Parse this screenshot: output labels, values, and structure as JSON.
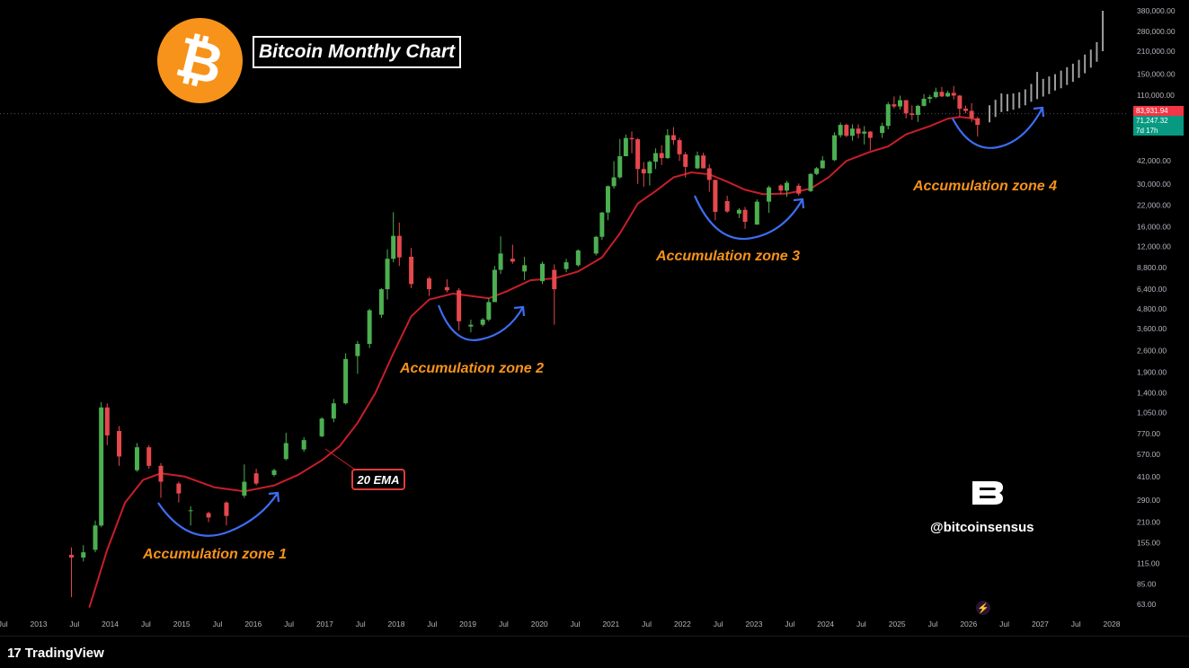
{
  "header": {
    "title": "Bitcoin Monthly Chart"
  },
  "logo": {
    "glyph": "₿",
    "color": "#f7931a"
  },
  "annotations": {
    "zones": [
      "Accumulation zone 1",
      "Accumulation zone 2",
      "Accumulation zone 3",
      "Accumulation zone 4"
    ],
    "ema_label": "20 EMA",
    "handle": "@bitcoinsensus"
  },
  "footer": {
    "brand": "TradingView",
    "brand_mark": "17"
  },
  "price_tags": [
    {
      "value": "83,931.94",
      "color": "#f23645"
    },
    {
      "value": "71,247.32",
      "color": "#089981"
    },
    {
      "value": "7d 17h",
      "color": "#089981"
    }
  ],
  "colors": {
    "up": "#4caf50",
    "down": "#e5484d",
    "ema": "#c81e2a",
    "projection": "#9e9e9e",
    "arrow": "#3d6df2"
  },
  "chart_data": {
    "type": "candlestick",
    "title": "Bitcoin Monthly Chart",
    "timeframe": "monthly",
    "y_scale": "log",
    "ylim": [
      50,
      380000
    ],
    "y_ticks": [
      "380,000.00",
      "280,000.00",
      "210,000.00",
      "150,000.00",
      "110,000.00",
      "42,000.00",
      "30,000.00",
      "22,000.00",
      "16,000.00",
      "12,000.00",
      "8,800.00",
      "6,400.00",
      "4,800.00",
      "3,600.00",
      "2,600.00",
      "1,900.00",
      "1,400.00",
      "1,050.00",
      "770.00",
      "570.00",
      "410.00",
      "290.00",
      "210.00",
      "155.00",
      "115.00",
      "85.00",
      "63.00"
    ],
    "x_ticks": [
      "Jul",
      "2013",
      "Jul",
      "2014",
      "Jul",
      "2015",
      "Jul",
      "2016",
      "Jul",
      "2017",
      "Jul",
      "2018",
      "Jul",
      "2019",
      "Jul",
      "2020",
      "Jul",
      "2021",
      "Jul",
      "2022",
      "Jul",
      "2023",
      "Jul",
      "2024",
      "Jul",
      "2025",
      "Jul",
      "2026",
      "Jul",
      "2027",
      "Jul",
      "2028"
    ],
    "x_tick_values": [
      2012.5,
      2013.0,
      2013.5,
      2014.0,
      2014.5,
      2015.0,
      2015.5,
      2016.0,
      2016.5,
      2017.0,
      2017.5,
      2018.0,
      2018.5,
      2019.0,
      2019.5,
      2020.0,
      2020.5,
      2021.0,
      2021.5,
      2022.0,
      2022.5,
      2023.0,
      2023.5,
      2024.0,
      2024.5,
      2025.0,
      2025.5,
      2026.0,
      2026.5,
      2027.0,
      2027.5,
      2028.0
    ],
    "ema_period": 20,
    "current_price": 71247.32,
    "ref_price": 83931.94,
    "candles": [
      [
        "2013-06",
        130,
        125,
        145,
        70
      ],
      [
        "2013-08",
        125,
        135,
        150,
        118
      ],
      [
        "2013-10",
        140,
        200,
        215,
        135
      ],
      [
        "2013-11",
        200,
        1130,
        1220,
        195
      ],
      [
        "2013-12",
        1130,
        750,
        1200,
        650
      ],
      [
        "2014-02",
        800,
        550,
        860,
        480
      ],
      [
        "2014-05",
        450,
        630,
        670,
        440
      ],
      [
        "2014-07",
        630,
        480,
        650,
        460
      ],
      [
        "2014-09",
        480,
        380,
        500,
        300
      ],
      [
        "2014-12",
        370,
        320,
        380,
        280
      ],
      [
        "2015-02",
        250,
        250,
        265,
        200
      ],
      [
        "2015-05",
        240,
        225,
        245,
        210
      ],
      [
        "2015-08",
        280,
        230,
        285,
        200
      ],
      [
        "2015-11",
        310,
        380,
        490,
        300
      ],
      [
        "2016-01",
        430,
        370,
        460,
        360
      ],
      [
        "2016-04",
        420,
        450,
        460,
        410
      ],
      [
        "2016-06",
        530,
        670,
        780,
        520
      ],
      [
        "2016-09",
        610,
        700,
        730,
        590
      ],
      [
        "2016-12",
        740,
        960,
        980,
        730
      ],
      [
        "2017-02",
        960,
        1200,
        1280,
        910
      ],
      [
        "2017-04",
        1200,
        2300,
        2500,
        1180
      ],
      [
        "2017-06",
        2400,
        2870,
        3000,
        1850
      ],
      [
        "2017-08",
        2870,
        4700,
        4800,
        2700
      ],
      [
        "2017-10",
        4400,
        6400,
        6500,
        4200
      ],
      [
        "2017-11",
        6400,
        10000,
        11500,
        5500
      ],
      [
        "2017-12",
        10000,
        14000,
        19800,
        9500
      ],
      [
        "2018-01",
        14000,
        10200,
        17000,
        9000
      ],
      [
        "2018-03",
        10300,
        6900,
        11700,
        6500
      ],
      [
        "2018-06",
        7500,
        6400,
        7700,
        5800
      ],
      [
        "2018-09",
        6600,
        6300,
        7400,
        6100
      ],
      [
        "2018-11",
        6300,
        4000,
        6500,
        3500
      ],
      [
        "2019-01",
        3700,
        3800,
        4100,
        3400
      ],
      [
        "2019-03",
        3800,
        4100,
        4200,
        3700
      ],
      [
        "2019-04",
        4100,
        5300,
        5600,
        4000
      ],
      [
        "2019-05",
        5300,
        8500,
        9000,
        5300
      ],
      [
        "2019-06",
        8500,
        10800,
        13900,
        8000
      ],
      [
        "2019-08",
        10000,
        9600,
        12300,
        9300
      ],
      [
        "2019-10",
        8300,
        9100,
        10300,
        7300
      ],
      [
        "2020-01",
        7200,
        9300,
        9600,
        6900
      ],
      [
        "2020-03",
        8500,
        6400,
        9200,
        3800
      ],
      [
        "2020-05",
        8600,
        9500,
        10000,
        8200
      ],
      [
        "2020-07",
        9100,
        11300,
        11500,
        8900
      ],
      [
        "2020-10",
        10800,
        13800,
        14000,
        10500
      ],
      [
        "2020-11",
        13800,
        19700,
        19900,
        13200
      ],
      [
        "2020-12",
        19700,
        29000,
        29300,
        17600
      ],
      [
        "2021-01",
        29000,
        33000,
        41900,
        28000
      ],
      [
        "2021-02",
        33000,
        45000,
        58000,
        32400
      ],
      [
        "2021-03",
        45000,
        58800,
        61800,
        45000
      ],
      [
        "2021-04",
        58800,
        57700,
        64800,
        47000
      ],
      [
        "2021-05",
        57700,
        37300,
        58800,
        30000
      ],
      [
        "2021-06",
        37300,
        35000,
        41300,
        28800
      ],
      [
        "2021-07",
        35000,
        41500,
        42300,
        29300
      ],
      [
        "2021-08",
        41500,
        47100,
        50500,
        37300
      ],
      [
        "2021-09",
        47100,
        43800,
        52900,
        39600
      ],
      [
        "2021-10",
        43800,
        61300,
        67000,
        43300
      ],
      [
        "2021-11",
        61300,
        57000,
        69000,
        53300
      ],
      [
        "2021-12",
        57000,
        46300,
        59000,
        42000
      ],
      [
        "2022-01",
        46300,
        38500,
        47900,
        32900
      ],
      [
        "2022-03",
        37700,
        45500,
        48200,
        37200
      ],
      [
        "2022-04",
        45500,
        37700,
        47400,
        37600
      ],
      [
        "2022-05",
        37700,
        31800,
        40000,
        26700
      ],
      [
        "2022-06",
        31800,
        19900,
        31900,
        17600
      ],
      [
        "2022-08",
        23300,
        20000,
        25200,
        19600
      ],
      [
        "2022-10",
        19400,
        20500,
        21000,
        18200
      ],
      [
        "2022-11",
        20500,
        17200,
        21400,
        15500
      ],
      [
        "2023-01",
        16500,
        23100,
        23900,
        16500
      ],
      [
        "2023-03",
        23100,
        28500,
        29200,
        19600
      ],
      [
        "2023-05",
        29300,
        27200,
        29800,
        25800
      ],
      [
        "2023-06",
        27200,
        30500,
        31400,
        24800
      ],
      [
        "2023-08",
        29200,
        26000,
        30200,
        25200
      ],
      [
        "2023-10",
        27000,
        34700,
        35200,
        26600
      ],
      [
        "2023-11",
        34700,
        37700,
        38400,
        34100
      ],
      [
        "2023-12",
        37700,
        42300,
        45000,
        37600
      ],
      [
        "2024-02",
        42500,
        61200,
        64000,
        41900
      ],
      [
        "2024-03",
        61200,
        71300,
        73800,
        59100
      ],
      [
        "2024-04",
        71300,
        60700,
        72700,
        59600
      ],
      [
        "2024-05",
        60700,
        67500,
        71900,
        56500
      ],
      [
        "2024-06",
        67500,
        62700,
        71900,
        58500
      ],
      [
        "2024-07",
        62700,
        64600,
        70000,
        53500
      ],
      [
        "2024-08",
        64600,
        58900,
        65000,
        49000
      ],
      [
        "2024-10",
        63300,
        70200,
        73600,
        58900
      ],
      [
        "2024-11",
        70200,
        96400,
        99600,
        66800
      ],
      [
        "2024-12",
        96400,
        93400,
        108300,
        90700
      ],
      [
        "2025-01",
        93400,
        102400,
        109500,
        89300
      ],
      [
        "2025-02",
        102400,
        84300,
        102700,
        78200
      ],
      [
        "2025-03",
        84300,
        82500,
        95000,
        76600
      ],
      [
        "2025-04",
        82500,
        94200,
        95700,
        74400
      ],
      [
        "2025-05",
        94200,
        104600,
        111900,
        93300
      ],
      [
        "2025-06",
        104600,
        107100,
        110500,
        98200
      ],
      [
        "2025-07",
        107100,
        115700,
        123000,
        105200
      ],
      [
        "2025-08",
        115700,
        108200,
        124500,
        107300
      ],
      [
        "2025-09",
        108200,
        114000,
        117900,
        107300
      ],
      [
        "2025-10",
        114000,
        109500,
        126200,
        103500
      ],
      [
        "2025-11",
        109500,
        90400,
        110600,
        80600
      ],
      [
        "2025-12",
        90400,
        87500,
        94600,
        84400
      ],
      [
        "2026-01",
        87500,
        78500,
        97900,
        74500
      ],
      [
        "2026-02",
        78500,
        71247.32,
        80000,
        60000
      ]
    ],
    "ema": [
      [
        "2013-09",
        60
      ],
      [
        "2013-12",
        140
      ],
      [
        "2014-03",
        280
      ],
      [
        "2014-06",
        390
      ],
      [
        "2014-09",
        430
      ],
      [
        "2015-01",
        410
      ],
      [
        "2015-06",
        350
      ],
      [
        "2015-11",
        330
      ],
      [
        "2016-04",
        360
      ],
      [
        "2016-08",
        420
      ],
      [
        "2016-12",
        520
      ],
      [
        "2017-03",
        640
      ],
      [
        "2017-06",
        900
      ],
      [
        "2017-09",
        1400
      ],
      [
        "2017-12",
        2500
      ],
      [
        "2018-03",
        4300
      ],
      [
        "2018-06",
        5500
      ],
      [
        "2018-10",
        6000
      ],
      [
        "2019-01",
        5800
      ],
      [
        "2019-04",
        5600
      ],
      [
        "2019-07",
        6200
      ],
      [
        "2019-11",
        7300
      ],
      [
        "2020-03",
        7500
      ],
      [
        "2020-07",
        8300
      ],
      [
        "2020-11",
        10200
      ],
      [
        "2021-02",
        14500
      ],
      [
        "2021-05",
        22500
      ],
      [
        "2021-08",
        27000
      ],
      [
        "2021-11",
        33000
      ],
      [
        "2022-02",
        35500
      ],
      [
        "2022-05",
        34500
      ],
      [
        "2022-08",
        31000
      ],
      [
        "2022-11",
        27500
      ],
      [
        "2023-02",
        25800
      ],
      [
        "2023-06",
        26000
      ],
      [
        "2023-10",
        28000
      ],
      [
        "2024-01",
        33000
      ],
      [
        "2024-04",
        42000
      ],
      [
        "2024-08",
        48000
      ],
      [
        "2024-11",
        52000
      ],
      [
        "2025-02",
        62000
      ],
      [
        "2025-06",
        70000
      ],
      [
        "2025-09",
        78000
      ],
      [
        "2025-11",
        80000
      ],
      [
        "2026-01",
        78500
      ],
      [
        "2026-02",
        76000
      ]
    ],
    "projection_bars": [
      [
        "2026-04",
        74000,
        95000
      ],
      [
        "2026-05",
        80000,
        103000
      ],
      [
        "2026-06",
        86000,
        113000
      ],
      [
        "2026-07",
        87000,
        112000
      ],
      [
        "2026-08",
        89000,
        113000
      ],
      [
        "2026-09",
        91000,
        115000
      ],
      [
        "2026-10",
        95000,
        120000
      ],
      [
        "2026-11",
        100000,
        130000
      ],
      [
        "2026-12",
        104000,
        155000
      ],
      [
        "2027-01",
        108000,
        140000
      ],
      [
        "2027-02",
        112000,
        145000
      ],
      [
        "2027-03",
        118000,
        150000
      ],
      [
        "2027-04",
        122000,
        158000
      ],
      [
        "2027-05",
        128000,
        166000
      ],
      [
        "2027-06",
        134000,
        175000
      ],
      [
        "2027-07",
        142000,
        185000
      ],
      [
        "2027-08",
        152000,
        200000
      ],
      [
        "2027-09",
        165000,
        215000
      ],
      [
        "2027-10",
        180000,
        240000
      ],
      [
        "2027-11",
        210000,
        380000
      ]
    ]
  }
}
